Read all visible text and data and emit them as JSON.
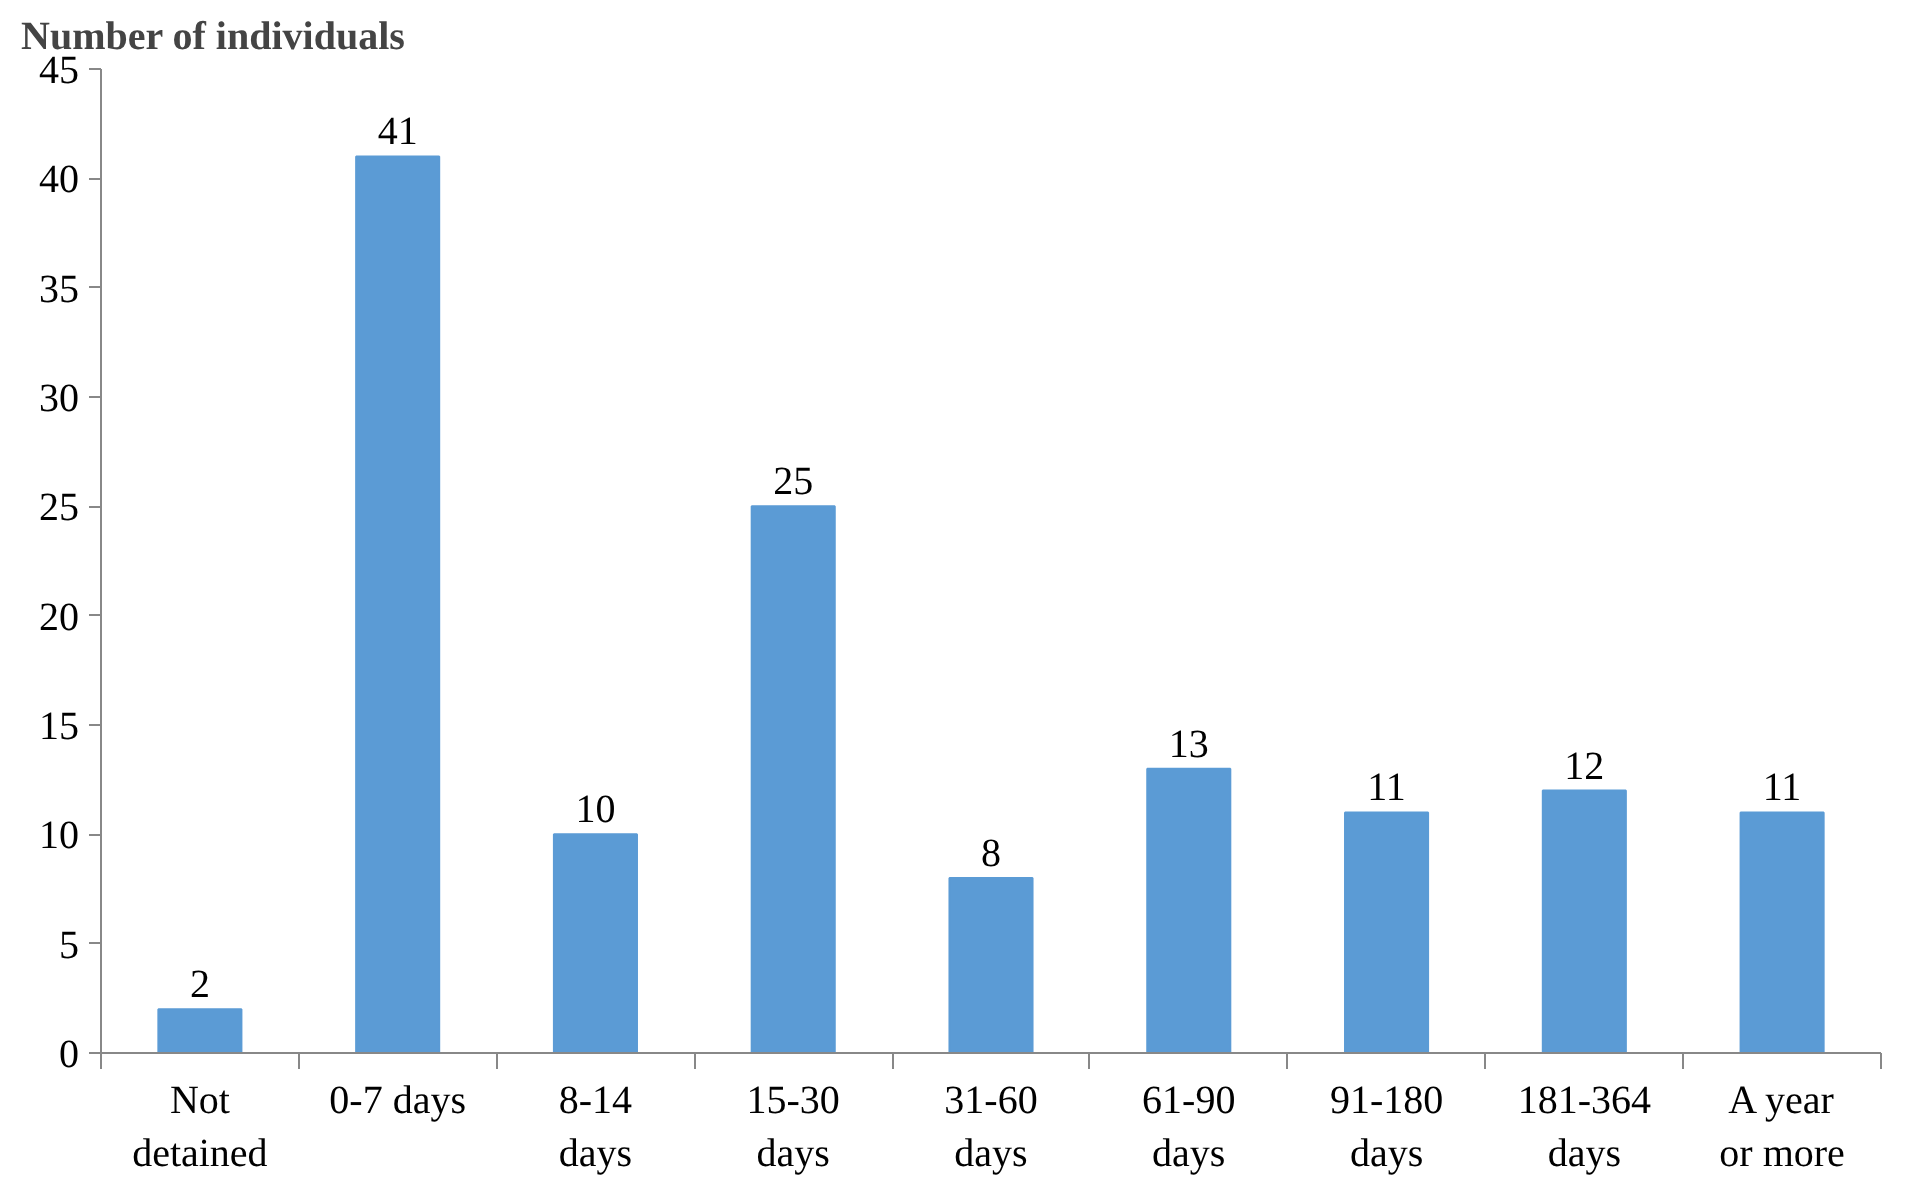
{
  "chart_data": {
    "type": "bar",
    "ylabel": "Number of individuals",
    "categories": [
      "Not\ndetained",
      "0-7 days",
      "8-14\ndays",
      "15-30\ndays",
      "31-60\ndays",
      "61-90\ndays",
      "91-180\ndays",
      "181-364\ndays",
      "A year\nor more"
    ],
    "values": [
      2,
      41,
      10,
      25,
      8,
      13,
      11,
      12,
      11
    ],
    "color": "#5b9bd5",
    "ylim": [
      0,
      45
    ],
    "yticks": [
      0,
      5,
      10,
      15,
      20,
      25,
      30,
      35,
      40,
      45
    ],
    "data_labels": true,
    "grid": false
  }
}
